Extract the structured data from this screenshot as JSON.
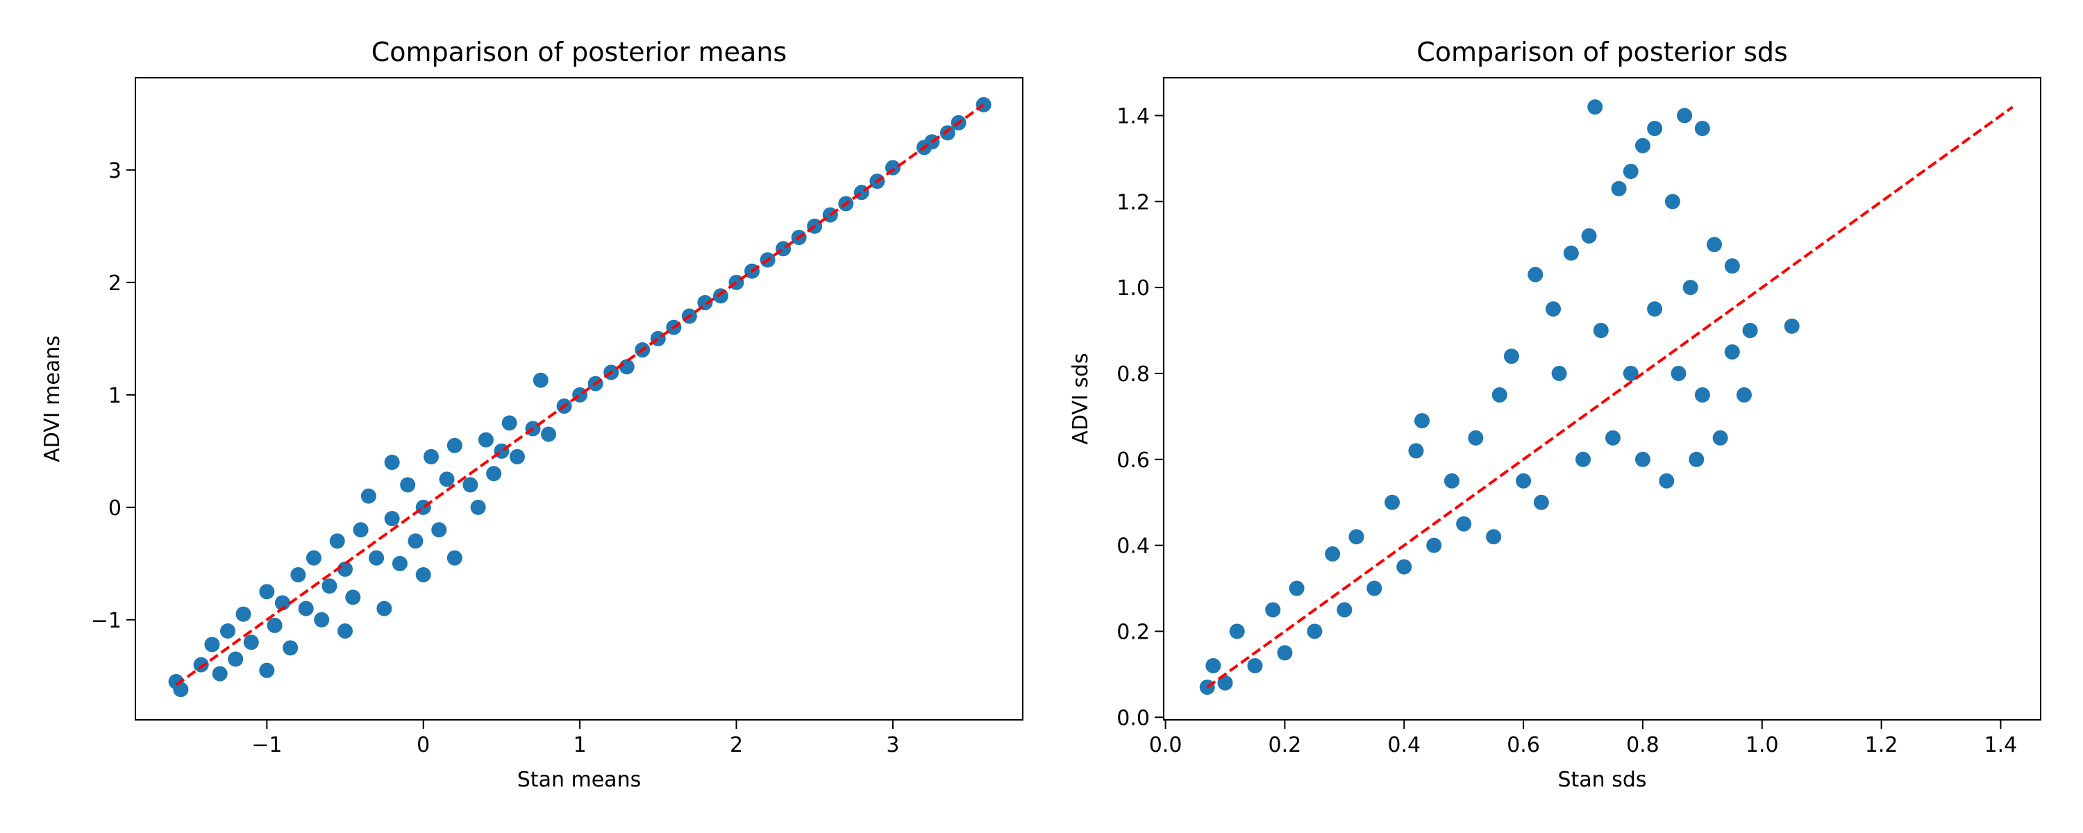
{
  "chart_data": [
    {
      "type": "scatter",
      "title": "Comparison of posterior means",
      "xlabel": "Stan means",
      "ylabel": "ADVI means",
      "xlim": [
        -1.84,
        3.83
      ],
      "ylim": [
        -1.89,
        3.82
      ],
      "xticks": [
        {
          "value": -1,
          "label": "−1"
        },
        0,
        1,
        2,
        3
      ],
      "yticks": [
        {
          "value": -1,
          "label": "−1"
        },
        0,
        1,
        2,
        3
      ],
      "series": [
        {
          "color": "#1f77b4",
          "x": [
            -1.58,
            -1.55,
            -1.42,
            -1.35,
            -1.3,
            -1.25,
            -1.2,
            -1.15,
            -1.1,
            -1.0,
            -1.0,
            -0.95,
            -0.9,
            -0.85,
            -0.8,
            -0.75,
            -0.7,
            -0.65,
            -0.6,
            -0.55,
            -0.5,
            -0.5,
            -0.45,
            -0.4,
            -0.35,
            -0.3,
            -0.25,
            -0.2,
            -0.2,
            -0.15,
            -0.1,
            -0.05,
            0,
            0,
            0.05,
            0.1,
            0.15,
            0.2,
            0.2,
            0.3,
            0.35,
            0.4,
            0.45,
            0.5,
            0.55,
            0.6,
            0.7,
            0.75,
            0.8,
            0.9,
            1.0,
            1.1,
            1.2,
            1.3,
            1.4,
            1.5,
            1.6,
            1.7,
            1.8,
            1.9,
            2.0,
            2.1,
            2.2,
            2.3,
            2.4,
            2.5,
            2.6,
            2.7,
            2.8,
            2.9,
            3.0,
            3.2,
            3.25,
            3.35,
            3.42,
            3.58
          ],
          "values": [
            -1.55,
            -1.62,
            -1.4,
            -1.22,
            -1.48,
            -1.1,
            -1.35,
            -0.95,
            -1.2,
            -1.45,
            -0.75,
            -1.05,
            -0.85,
            -1.25,
            -0.6,
            -0.9,
            -0.45,
            -1.0,
            -0.7,
            -0.3,
            -0.55,
            -1.1,
            -0.8,
            -0.2,
            0.1,
            -0.45,
            -0.9,
            -0.1,
            0.4,
            -0.5,
            0.2,
            -0.3,
            0,
            -0.6,
            0.45,
            -0.2,
            0.25,
            -0.45,
            0.55,
            0.2,
            0,
            0.6,
            0.3,
            0.5,
            0.75,
            0.45,
            0.7,
            1.13,
            0.65,
            0.9,
            1.0,
            1.1,
            1.2,
            1.25,
            1.4,
            1.5,
            1.6,
            1.7,
            1.82,
            1.88,
            2.0,
            2.1,
            2.2,
            2.3,
            2.4,
            2.5,
            2.6,
            2.7,
            2.8,
            2.9,
            3.02,
            3.2,
            3.25,
            3.33,
            3.42,
            3.58
          ]
        }
      ],
      "lines": [
        {
          "color": "#ff0000",
          "x": [
            -1.58,
            3.58
          ],
          "values": [
            -1.58,
            3.58
          ]
        }
      ]
    },
    {
      "type": "scatter",
      "title": "Comparison of posterior sds",
      "xlabel": "Stan sds",
      "ylabel": "ADVI sds",
      "xlim": [
        -0.003,
        1.467
      ],
      "ylim": [
        -0.006,
        1.488
      ],
      "xticks": [
        {
          "value": 0,
          "label": "0.0"
        },
        0.2,
        0.4,
        0.6,
        0.8,
        {
          "value": 1,
          "label": "1.0"
        },
        1.2,
        1.4
      ],
      "yticks": [
        {
          "value": 0,
          "label": "0.0"
        },
        0.2,
        0.4,
        0.6,
        0.8,
        {
          "value": 1,
          "label": "1.0"
        },
        1.2,
        1.4
      ],
      "series": [
        {
          "color": "#1f77b4",
          "x": [
            0.07,
            0.08,
            0.1,
            0.12,
            0.15,
            0.18,
            0.2,
            0.22,
            0.25,
            0.28,
            0.3,
            0.32,
            0.35,
            0.38,
            0.4,
            0.42,
            0.43,
            0.45,
            0.48,
            0.5,
            0.52,
            0.55,
            0.56,
            0.58,
            0.6,
            0.62,
            0.63,
            0.65,
            0.66,
            0.68,
            0.7,
            0.71,
            0.72,
            0.73,
            0.75,
            0.76,
            0.78,
            0.78,
            0.8,
            0.8,
            0.82,
            0.82,
            0.84,
            0.85,
            0.86,
            0.87,
            0.88,
            0.89,
            0.9,
            0.9,
            0.92,
            0.93,
            0.95,
            0.95,
            0.97,
            0.98,
            1.05
          ],
          "values": [
            0.07,
            0.12,
            0.08,
            0.2,
            0.12,
            0.25,
            0.15,
            0.3,
            0.2,
            0.38,
            0.25,
            0.42,
            0.3,
            0.5,
            0.35,
            0.62,
            0.69,
            0.4,
            0.55,
            0.45,
            0.65,
            0.42,
            0.75,
            0.84,
            0.55,
            1.03,
            0.5,
            0.95,
            0.8,
            1.08,
            0.6,
            1.12,
            1.42,
            0.9,
            0.65,
            1.23,
            1.27,
            0.8,
            1.33,
            0.6,
            1.37,
            0.95,
            0.55,
            1.2,
            0.8,
            1.4,
            1.0,
            0.6,
            1.37,
            0.75,
            1.1,
            0.65,
            1.05,
            0.85,
            0.75,
            0.9,
            0.91
          ]
        }
      ],
      "lines": [
        {
          "color": "#ff0000",
          "x": [
            0.07,
            1.42
          ],
          "values": [
            0.07,
            1.42
          ]
        }
      ]
    }
  ]
}
